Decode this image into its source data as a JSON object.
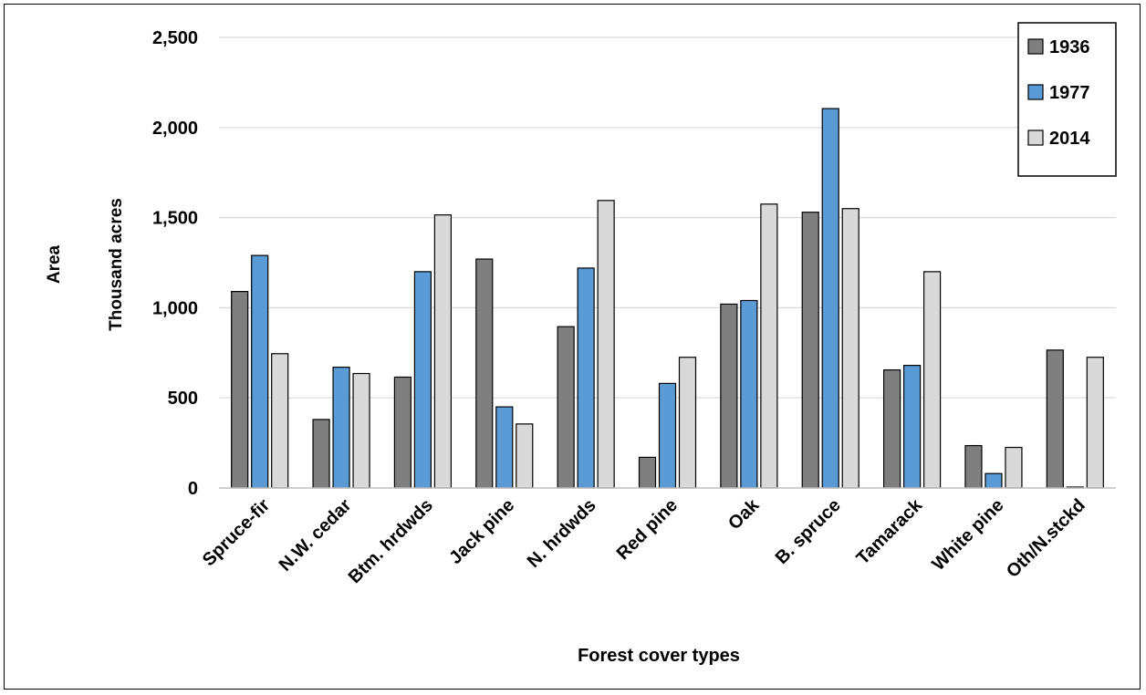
{
  "chart_data": {
    "type": "bar",
    "title": "",
    "xlabel": "Forest cover types",
    "ylabel": [
      "Area",
      "Thousand  acres"
    ],
    "ylim": [
      0,
      2500
    ],
    "yticks": [
      0,
      500,
      1000,
      1500,
      2000,
      2500
    ],
    "ytick_labels": [
      "0",
      "500",
      "1,000",
      "1,500",
      "2,000",
      "2,500"
    ],
    "grid": true,
    "legend": "top-right",
    "categories": [
      "Spruce-fir",
      "N.W. cedar",
      "Btm. hrdwds",
      "Jack pine",
      "N. hrdwds",
      "Red pine",
      "Oak",
      "B. spruce",
      "Tamarack",
      "White pine",
      "Oth/N.stckd"
    ],
    "series": [
      {
        "name": "1936",
        "color": "#7f7f7f",
        "values": [
          1090,
          380,
          615,
          1270,
          895,
          170,
          1020,
          1530,
          655,
          235,
          765
        ]
      },
      {
        "name": "1977",
        "color": "#5b9bd5",
        "values": [
          1290,
          670,
          1200,
          450,
          1220,
          580,
          1040,
          2105,
          680,
          80,
          5
        ]
      },
      {
        "name": "2014",
        "color": "#d9d9d9",
        "values": [
          745,
          635,
          1515,
          355,
          1595,
          725,
          1575,
          1550,
          1200,
          225,
          725
        ]
      }
    ]
  }
}
